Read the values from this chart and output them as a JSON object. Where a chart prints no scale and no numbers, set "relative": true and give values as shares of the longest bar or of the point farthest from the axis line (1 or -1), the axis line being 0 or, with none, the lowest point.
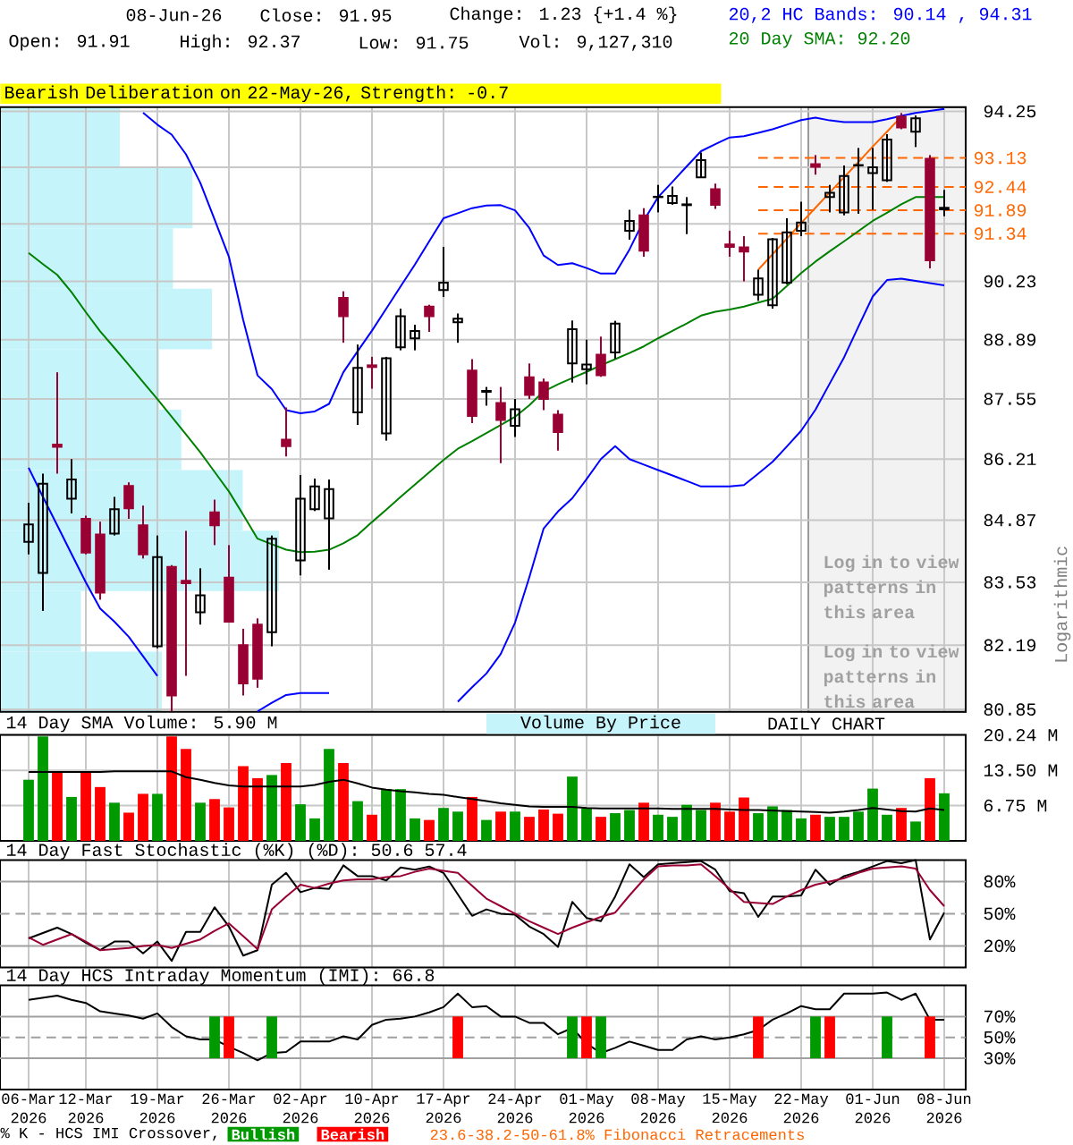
{
  "chart_data": [
    {
      "type": "candlestick",
      "subtitle": "Bearish Deliberation on 22-May-26, Strength: -0.7",
      "annotations": [
        "08-Jun-26",
        "Close: 91.95",
        "Change: 1.23 {+1.4 %}",
        "Open: 91.91",
        "High: 92.37",
        "Low: 91.75",
        "Vol: 9,127,310",
        "Log in to view patterns in this area",
        "Log in to view patterns in this area",
        "Logarithmic"
      ],
      "categories": [
        null,
        null,
        null,
        null,
        null,
        null,
        null,
        null,
        null,
        null,
        null,
        null,
        null,
        null,
        null,
        null,
        null,
        null,
        null,
        null,
        null,
        null,
        null,
        null,
        null,
        null,
        null,
        null,
        null,
        null,
        null,
        null,
        null,
        null,
        null,
        null,
        null,
        null,
        null,
        null,
        null,
        null,
        null,
        null,
        null,
        null,
        null,
        null,
        null,
        null,
        null,
        null,
        null,
        null,
        null,
        null,
        null,
        null,
        null,
        null,
        null,
        null,
        null,
        null,
        null
      ],
      "ohlc": [
        [
          84.4,
          85.25,
          84.13,
          84.78
        ],
        [
          83.73,
          85.89,
          82.92,
          85.67
        ],
        [
          86.53,
          88.15,
          85.89,
          86.48
        ],
        [
          85.34,
          86.21,
          85.02,
          85.76
        ],
        [
          84.9,
          84.97,
          84.13,
          84.17
        ],
        [
          84.56,
          84.84,
          83.16,
          83.31
        ],
        [
          84.58,
          85.38,
          84.54,
          85.11
        ],
        [
          85.62,
          85.7,
          84.9,
          85.13
        ],
        [
          84.76,
          85.19,
          84.04,
          84.13
        ],
        [
          82.17,
          84.54,
          82.13,
          84.07
        ],
        [
          83.86,
          83.9,
          80.81,
          81.14
        ],
        [
          83.56,
          84.64,
          81.55,
          83.51
        ],
        [
          82.89,
          83.83,
          82.63,
          83.25
        ],
        [
          85.04,
          85.32,
          84.33,
          84.76
        ],
        [
          83.63,
          84.33,
          82.67,
          82.69
        ],
        [
          82.19,
          82.54,
          81.14,
          81.39
        ],
        [
          82.63,
          82.76,
          81.3,
          81.49
        ],
        [
          82.47,
          84.54,
          82.17,
          84.47
        ],
        [
          86.64,
          87.36,
          86.27,
          86.5
        ],
        [
          84.0,
          85.86,
          83.68,
          85.34
        ],
        [
          85.11,
          85.78,
          85.07,
          85.61
        ],
        [
          84.91,
          85.76,
          83.8,
          85.55
        ],
        [
          89.85,
          90.0,
          88.82,
          89.43
        ],
        [
          87.25,
          88.78,
          86.97,
          88.25
        ],
        [
          88.31,
          88.5,
          87.78,
          88.27
        ],
        [
          86.78,
          88.5,
          86.62,
          88.47
        ],
        [
          88.72,
          89.6,
          88.65,
          89.43
        ],
        [
          88.92,
          89.23,
          88.65,
          89.09
        ],
        [
          89.65,
          89.69,
          89.07,
          89.43
        ],
        [
          90.03,
          91.03,
          89.87,
          90.2
        ],
        [
          89.29,
          89.49,
          88.82,
          89.37
        ],
        [
          88.19,
          88.45,
          87.01,
          87.17
        ],
        [
          87.71,
          87.82,
          87.4,
          87.73
        ],
        [
          87.46,
          87.82,
          86.12,
          87.08
        ],
        [
          86.95,
          87.55,
          86.7,
          87.32
        ],
        [
          88.04,
          88.35,
          87.55,
          87.64
        ],
        [
          87.92,
          88.01,
          87.3,
          87.55
        ],
        [
          87.2,
          87.3,
          86.4,
          86.81
        ],
        [
          88.35,
          89.33,
          87.92,
          89.13
        ],
        [
          88.22,
          88.89,
          87.88,
          88.33
        ],
        [
          88.55,
          88.96,
          88.05,
          88.08
        ],
        [
          88.6,
          89.32,
          88.46,
          89.26
        ],
        [
          91.41,
          91.9,
          91.2,
          91.64
        ],
        [
          91.77,
          91.94,
          90.8,
          90.94
        ],
        [
          92.2,
          92.49,
          91.84,
          92.21
        ],
        [
          92.06,
          92.45,
          92.02,
          92.23
        ],
        [
          92.01,
          92.2,
          91.33,
          92.03
        ],
        [
          92.67,
          93.26,
          92.67,
          93.08
        ],
        [
          92.39,
          92.52,
          91.92,
          92.02
        ],
        [
          91.09,
          91.41,
          90.8,
          91.03
        ],
        [
          91.02,
          91.28,
          90.23,
          90.92
        ],
        [
          89.92,
          90.5,
          89.78,
          90.3
        ],
        [
          89.68,
          91.24,
          89.6,
          91.21
        ],
        [
          90.2,
          91.7,
          90.16,
          91.37
        ],
        [
          91.41,
          92.09,
          91.28,
          91.6
        ],
        [
          92.98,
          93.2,
          92.73,
          92.92
        ],
        [
          92.2,
          92.49,
          91.84,
          92.3
        ],
        [
          91.84,
          92.95,
          91.77,
          92.7
        ],
        [
          92.95,
          93.37,
          91.81,
          92.96
        ],
        [
          92.77,
          93.37,
          91.9,
          92.91
        ],
        [
          92.6,
          93.7,
          92.56,
          93.57
        ],
        [
          94.12,
          94.21,
          93.82,
          93.86
        ],
        [
          93.76,
          94.15,
          93.39,
          94.08
        ],
        [
          93.11,
          93.2,
          90.53,
          90.72
        ],
        [
          91.91,
          92.37,
          91.75,
          91.95
        ]
      ],
      "colors": [
        "#000000",
        "#000000",
        "#990033",
        "#000000",
        "#990033",
        "#990033",
        "#000000",
        "#990033",
        "#990033",
        "#000000",
        "#990033",
        "#990033",
        "#000000",
        "#990033",
        "#990033",
        "#990033",
        "#990033",
        "#000000",
        "#990033",
        "#000000",
        "#000000",
        "#000000",
        "#990033",
        "#000000",
        "#990033",
        "#000000",
        "#000000",
        "#000000",
        "#990033",
        "#000000",
        "#000000",
        "#990033",
        "#000000",
        "#990033",
        "#000000",
        "#990033",
        "#990033",
        "#990033",
        "#000000",
        "#000000",
        "#990033",
        "#000000",
        "#000000",
        "#990033",
        "#000000",
        "#000000",
        "#000000",
        "#000000",
        "#990033",
        "#990033",
        "#990033",
        "#000000",
        "#000000",
        "#000000",
        "#000000",
        "#990033",
        "#000000",
        "#000000",
        "#000000",
        "#000000",
        "#000000",
        "#990033",
        "#000000",
        "#990033",
        "#000000"
      ],
      "series": [
        {
          "name": "20,2 HC Bands: 90.14 , 94.31",
          "type": "line",
          "color": "#0000ff",
          "values": [
            null,
            null,
            null,
            null,
            null,
            null,
            null,
            null,
            94.22,
            93.93,
            93.69,
            93.22,
            92.54,
            91.67,
            90.8,
            89.34,
            88.08,
            87.77,
            87.3,
            87.23,
            87.27,
            87.44,
            88.15,
            88.63,
            89.1,
            89.6,
            90.11,
            90.62,
            91.16,
            91.7,
            91.82,
            91.94,
            92.0,
            92.01,
            91.89,
            91.47,
            90.83,
            90.61,
            90.65,
            90.54,
            90.41,
            90.41,
            90.97,
            91.65,
            92.2,
            92.56,
            92.93,
            93.29,
            93.46,
            93.62,
            93.65,
            93.73,
            93.82,
            93.93,
            94.04,
            94.1,
            94.03,
            93.99,
            93.99,
            93.99,
            94.06,
            94.14,
            94.21,
            94.26,
            94.31
          ]
        },
        {
          "type": "line",
          "color": "#0000ff",
          "values": [
            86.02,
            85.38,
            84.76,
            84.14,
            83.53,
            82.97,
            82.69,
            82.37,
            81.96,
            81.55,
            null,
            null,
            null,
            null,
            null,
            null,
            80.81,
            80.99,
            81.15,
            81.19,
            81.19,
            81.19,
            null,
            null,
            null,
            null,
            null,
            null,
            null,
            null,
            81.01,
            81.31,
            81.6,
            82.01,
            82.67,
            83.64,
            84.69,
            85.06,
            85.35,
            85.77,
            86.21,
            86.5,
            86.21,
            86.09,
            85.97,
            85.85,
            85.73,
            85.61,
            85.61,
            85.61,
            85.64,
            85.89,
            86.15,
            86.49,
            86.84,
            87.31,
            87.9,
            88.49,
            89.19,
            89.88,
            90.26,
            90.29,
            90.24,
            90.19,
            90.14
          ]
        },
        {
          "name": "20 Day SMA: 92.20",
          "type": "line",
          "color": "#008000",
          "values": [
            90.89,
            90.63,
            90.38,
            89.98,
            89.52,
            89.08,
            88.7,
            88.32,
            87.93,
            87.55,
            87.15,
            86.76,
            86.36,
            85.93,
            85.5,
            84.99,
            84.47,
            84.35,
            84.23,
            84.18,
            84.19,
            84.23,
            84.37,
            84.55,
            84.83,
            85.1,
            85.38,
            85.65,
            85.92,
            86.19,
            86.44,
            86.61,
            86.79,
            86.97,
            87.15,
            87.41,
            87.72,
            87.88,
            88.02,
            88.16,
            88.31,
            88.45,
            88.59,
            88.74,
            88.92,
            89.09,
            89.26,
            89.44,
            89.53,
            89.58,
            89.65,
            89.74,
            89.83,
            90.12,
            90.42,
            90.69,
            90.93,
            91.16,
            91.4,
            91.64,
            91.83,
            92.03,
            92.2,
            92.2,
            92.2
          ]
        },
        {
          "type": "line",
          "color": "#ff6600",
          "values": [
            null,
            null,
            null,
            null,
            null,
            null,
            null,
            null,
            null,
            null,
            null,
            null,
            null,
            null,
            null,
            null,
            null,
            null,
            null,
            null,
            null,
            null,
            null,
            null,
            null,
            null,
            null,
            null,
            null,
            null,
            null,
            null,
            null,
            null,
            null,
            null,
            null,
            null,
            null,
            null,
            null,
            null,
            null,
            null,
            null,
            null,
            null,
            null,
            null,
            null,
            null,
            90.5,
            90.86,
            91.22,
            91.59,
            91.95,
            92.31,
            92.67,
            93.03,
            93.4,
            93.76,
            94.12,
            null,
            null,
            null
          ]
        }
      ],
      "ref_lines": [
        {
          "axis": "y",
          "value": 93.13,
          "label": "93.13",
          "color": "#ff6600",
          "line_style": "dashed"
        },
        {
          "axis": "y",
          "value": 92.44,
          "label": "92.44",
          "color": "#ff6600",
          "line_style": "dashed"
        },
        {
          "axis": "y",
          "value": 91.89,
          "label": "91.89",
          "color": "#ff6600",
          "line_style": "dashed"
        },
        {
          "axis": "y",
          "value": 91.34,
          "label": "91.34",
          "color": "#ff6600",
          "line_style": "dashed"
        }
      ],
      "ylim": [
        80.8,
        94.35
      ],
      "yticks": [
        94.25,
        {
          "value": 92.91,
          "label": null
        },
        {
          "value": 91.57,
          "label": null
        },
        90.23,
        88.89,
        87.55,
        86.21,
        84.87,
        83.53,
        82.19,
        80.85
      ],
      "log": "y",
      "grid": true,
      "tick_labels": "y",
      "legend": "top right"
    },
    {
      "type": "bar",
      "orientation": "horizontal",
      "relative": true,
      "categories": [
        null,
        null,
        null,
        null,
        null,
        null,
        null,
        null,
        null,
        null
      ],
      "values": [
        0.43,
        0.69,
        0.62,
        0.76,
        0.57,
        0.65,
        0.87,
        1,
        0.29,
        0.58
      ],
      "color": "#c6f4fb"
    },
    {
      "type": "bar",
      "title": "14 Day SMA Volume: 5.90 M",
      "annotations": [
        "DAILY CHART",
        "Volume By Price"
      ],
      "categories": [
        null,
        null,
        null,
        null,
        null,
        null,
        null,
        null,
        null,
        null,
        null,
        null,
        null,
        null,
        null,
        null,
        null,
        null,
        null,
        null,
        null,
        null,
        null,
        null,
        null,
        null,
        null,
        null,
        null,
        null,
        null,
        null,
        null,
        null,
        null,
        null,
        null,
        null,
        null,
        null,
        null,
        null,
        null,
        null,
        null,
        null,
        null,
        null,
        null,
        null,
        null,
        null,
        null,
        null,
        null,
        null,
        null,
        null,
        null,
        null,
        null,
        null,
        null,
        null,
        null
      ],
      "series": [
        {
          "type": "bar",
          "values": [
            11.7,
            20.0,
            13.2,
            8.4,
            13.2,
            10.3,
            7.3,
            5.4,
            9.0,
            9.0,
            20.0,
            17.6,
            7.3,
            8.0,
            6.4,
            14.3,
            12.0,
            12.6,
            14.9,
            7.0,
            4.3,
            17.6,
            14.9,
            7.6,
            5.0,
            9.9,
            9.9,
            4.3,
            4.0,
            6.3,
            5.6,
            8.4,
            4.0,
            5.6,
            5.6,
            4.6,
            6.0,
            5.2,
            12.3,
            6.2,
            4.6,
            5.3,
            5.9,
            7.3,
            5.0,
            4.6,
            6.9,
            5.9,
            7.3,
            5.6,
            8.3,
            5.3,
            6.6,
            5.9,
            4.3,
            5.0,
            4.6,
            4.6,
            5.6,
            10.0,
            5.0,
            6.3,
            3.7,
            12.0,
            9.1
          ],
          "colors": [
            "#009900",
            "#009900",
            "#ff0000",
            "#009900",
            "#ff0000",
            "#ff0000",
            "#009900",
            "#ff0000",
            "#ff0000",
            "#009900",
            "#ff0000",
            "#ff0000",
            "#009900",
            "#ff0000",
            "#ff0000",
            "#ff0000",
            "#ff0000",
            "#009900",
            "#ff0000",
            "#009900",
            "#009900",
            "#009900",
            "#ff0000",
            "#009900",
            "#ff0000",
            "#009900",
            "#009900",
            "#009900",
            "#ff0000",
            "#009900",
            "#009900",
            "#ff0000",
            "#009900",
            "#ff0000",
            "#009900",
            "#ff0000",
            "#ff0000",
            "#ff0000",
            "#009900",
            "#009900",
            "#ff0000",
            "#009900",
            "#009900",
            "#ff0000",
            "#009900",
            "#009900",
            "#009900",
            "#009900",
            "#ff0000",
            "#ff0000",
            "#ff0000",
            "#009900",
            "#009900",
            "#009900",
            "#009900",
            "#ff0000",
            "#009900",
            "#009900",
            "#009900",
            "#009900",
            "#009900",
            "#ff0000",
            "#009900",
            "#ff0000",
            "#009900"
          ]
        },
        {
          "type": "line",
          "color": "#000000",
          "values": [
            13.2,
            13.2,
            13.2,
            13.2,
            13.2,
            13.2,
            13.3,
            13.3,
            13.3,
            13.3,
            13.3,
            12.2,
            11.7,
            11.1,
            10.6,
            10.4,
            10.4,
            10.4,
            10.4,
            10.4,
            10.7,
            11.3,
            11.7,
            11.0,
            10.2,
            9.8,
            9.5,
            9.3,
            9.0,
            8.8,
            8.4,
            8.0,
            7.6,
            7.2,
            6.9,
            6.6,
            6.5,
            6.5,
            6.5,
            6.3,
            6.2,
            6.2,
            6.2,
            6.2,
            6.2,
            6.1,
            6.1,
            6.1,
            6.1,
            6.0,
            5.9,
            5.9,
            5.8,
            5.7,
            5.6,
            5.5,
            5.4,
            5.6,
            5.9,
            6.3,
            6.0,
            5.7,
            5.6,
            6.2,
            5.9
          ]
        }
      ],
      "ylim": [
        0,
        20.3
      ],
      "yticks": [
        {
          "value": 6.75,
          "label": "6.75 M"
        },
        {
          "value": 13.5,
          "label": "13.50 M"
        },
        {
          "value": 20.24,
          "label": "20.24 M"
        }
      ],
      "grid": true,
      "tick_labels": "y"
    },
    {
      "type": "line",
      "title": "14 Day Fast Stochastic (%K) (%D): 50.6 57.4",
      "categories": [
        null,
        null,
        null,
        null,
        null,
        null,
        null,
        null,
        null,
        null,
        null,
        null,
        null,
        null,
        null,
        null,
        null,
        null,
        null,
        null,
        null,
        null,
        null,
        null,
        null,
        null,
        null,
        null,
        null,
        null,
        null,
        null,
        null,
        null,
        null,
        null,
        null,
        null,
        null,
        null,
        null,
        null,
        null,
        null,
        null,
        null,
        null,
        null,
        null,
        null,
        null,
        null,
        null,
        null,
        null,
        null,
        null,
        null,
        null,
        null,
        null,
        null,
        null,
        null,
        null
      ],
      "series": [
        {
          "color": "#000000",
          "values": [
            27,
            32,
            37,
            31,
            23,
            16,
            24,
            24,
            13,
            24,
            6,
            33,
            33,
            56,
            38,
            11,
            16,
            77,
            88,
            70,
            74,
            73,
            95,
            85,
            85,
            81,
            93,
            91,
            94,
            88,
            68,
            48,
            54,
            50,
            49,
            38,
            31,
            19,
            61,
            46,
            43,
            66,
            96,
            84,
            96,
            97,
            98,
            99,
            91,
            71,
            69,
            47,
            66,
            66,
            67,
            91,
            77,
            85,
            89,
            94,
            99,
            97,
            100,
            26,
            51
          ]
        },
        {
          "color": "#990033",
          "values": [
            28,
            21,
            26,
            31,
            24,
            16,
            17,
            18,
            20,
            21,
            18,
            22,
            26,
            34,
            41,
            29,
            17,
            54,
            66,
            77,
            74,
            78,
            81,
            82,
            82,
            84,
            85,
            89,
            92,
            90,
            88,
            76,
            64,
            57,
            50,
            43,
            37,
            31,
            37,
            42,
            47,
            51,
            67,
            82,
            94,
            95,
            95,
            96,
            85,
            73,
            61,
            60,
            59,
            66,
            72,
            77,
            80,
            83,
            88,
            92,
            93,
            94,
            92,
            72,
            57
          ]
        }
      ],
      "ylim": [
        0,
        100
      ],
      "yticks": [
        {
          "value": 20,
          "label": "20%"
        },
        {
          "value": 50,
          "label": "50%"
        },
        {
          "value": 80,
          "label": "80%"
        }
      ],
      "grid": "x",
      "tick_labels": "y",
      "ref_lines": [
        {
          "axis": "y",
          "value": 20,
          "color": "#a0a0a0"
        },
        {
          "axis": "y",
          "value": 50,
          "color": "#a0a0a0",
          "line_style": "dashed"
        },
        {
          "axis": "y",
          "value": 80,
          "color": "#a0a0a0"
        }
      ]
    },
    {
      "type": "line",
      "title": "14 Day HCS Intraday Momentum (IMI): 66.8",
      "legend_title": "% K - HCS IMI Crossover,",
      "legend": "bottom",
      "annotations": [
        "23.6-38.2-50-61.8% Fibonacci Retracements"
      ],
      "categories": [
        "06-Mar 2026",
        null,
        null,
        null,
        "12-Mar 2026",
        null,
        null,
        null,
        null,
        "19-Mar 2026",
        null,
        null,
        null,
        null,
        "26-Mar 2026",
        null,
        null,
        null,
        null,
        "02-Apr 2026",
        null,
        null,
        null,
        null,
        "10-Apr 2026",
        null,
        null,
        null,
        null,
        "17-Apr 2026",
        null,
        null,
        null,
        null,
        "24-Apr 2026",
        null,
        null,
        null,
        null,
        "01-May 2026",
        null,
        null,
        null,
        null,
        "08-May 2026",
        null,
        null,
        null,
        null,
        "15-May 2026",
        null,
        null,
        null,
        null,
        "22-May 2026",
        null,
        null,
        null,
        null,
        "01-Jun 2026",
        null,
        null,
        null,
        null,
        "08-Jun 2026"
      ],
      "series": [
        {
          "type": "line",
          "color": "#000000",
          "values": [
            86,
            88,
            90,
            86,
            83,
            75,
            73,
            71,
            68,
            73,
            60,
            51,
            48,
            48,
            41,
            35,
            28,
            35,
            36,
            46,
            46,
            46,
            51,
            48,
            62,
            67,
            68,
            70,
            74,
            79,
            92,
            79,
            80,
            70,
            70,
            64,
            64,
            53,
            59,
            44,
            35,
            40,
            46,
            42,
            38,
            38,
            48,
            51,
            48,
            50,
            53,
            57,
            67,
            73,
            80,
            77,
            77,
            92,
            92,
            92,
            93,
            86,
            92,
            67,
            67
          ]
        },
        {
          "type": "bar",
          "name": "Bullish",
          "color": "#009900",
          "base": [
            null,
            null,
            null,
            null,
            null,
            null,
            null,
            null,
            null,
            null,
            null,
            null,
            null,
            30,
            null,
            null,
            null,
            30,
            null,
            null,
            null,
            null,
            null,
            null,
            null,
            null,
            null,
            null,
            null,
            null,
            null,
            null,
            null,
            null,
            null,
            null,
            null,
            null,
            30,
            null,
            30,
            null,
            null,
            null,
            null,
            null,
            null,
            null,
            null,
            null,
            null,
            null,
            null,
            null,
            null,
            30,
            null,
            null,
            null,
            null,
            30,
            null,
            null,
            null,
            null
          ],
          "values": [
            null,
            null,
            null,
            null,
            null,
            null,
            null,
            null,
            null,
            null,
            null,
            null,
            null,
            40,
            null,
            null,
            null,
            40,
            null,
            null,
            null,
            null,
            null,
            null,
            null,
            null,
            null,
            null,
            null,
            null,
            null,
            null,
            null,
            null,
            null,
            null,
            null,
            null,
            40,
            null,
            40,
            null,
            null,
            null,
            null,
            null,
            null,
            null,
            null,
            null,
            null,
            null,
            null,
            null,
            null,
            40,
            null,
            null,
            null,
            null,
            40,
            null,
            null,
            null,
            null
          ]
        },
        {
          "type": "bar",
          "name": "Bearish",
          "color": "#ff0000",
          "base": [
            null,
            null,
            null,
            null,
            null,
            null,
            null,
            null,
            null,
            null,
            null,
            null,
            null,
            null,
            30,
            null,
            null,
            null,
            null,
            null,
            null,
            null,
            null,
            null,
            null,
            null,
            null,
            null,
            null,
            null,
            30,
            null,
            null,
            null,
            null,
            null,
            null,
            null,
            null,
            30,
            null,
            null,
            null,
            null,
            null,
            null,
            null,
            null,
            null,
            null,
            null,
            30,
            null,
            null,
            null,
            null,
            30,
            null,
            null,
            null,
            null,
            null,
            null,
            30,
            null
          ],
          "values": [
            null,
            null,
            null,
            null,
            null,
            null,
            null,
            null,
            null,
            null,
            null,
            null,
            null,
            null,
            40,
            null,
            null,
            null,
            null,
            null,
            null,
            null,
            null,
            null,
            null,
            null,
            null,
            null,
            null,
            null,
            40,
            null,
            null,
            null,
            null,
            null,
            null,
            null,
            null,
            40,
            null,
            null,
            null,
            null,
            null,
            null,
            null,
            null,
            null,
            null,
            null,
            40,
            null,
            null,
            null,
            null,
            40,
            null,
            null,
            null,
            null,
            null,
            null,
            40,
            null
          ]
        }
      ],
      "ylim": [
        0,
        100
      ],
      "yticks": [
        {
          "value": 30,
          "label": "30%"
        },
        {
          "value": 50,
          "label": "50%"
        },
        {
          "value": 70,
          "label": "70%"
        }
      ],
      "grid": "x",
      "ref_lines": [
        {
          "axis": "y",
          "value": 30,
          "color": "#a0a0a0"
        },
        {
          "axis": "y",
          "value": 50,
          "color": "#a0a0a0",
          "line_style": "dashed"
        },
        {
          "axis": "y",
          "value": 70,
          "color": "#a0a0a0"
        }
      ]
    }
  ]
}
